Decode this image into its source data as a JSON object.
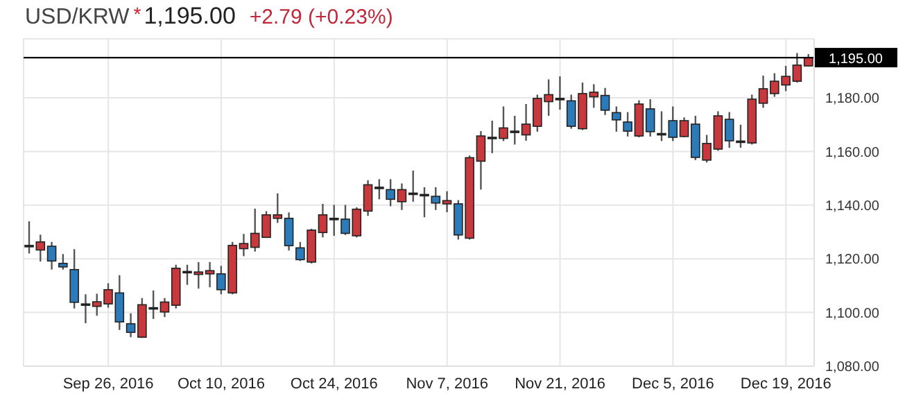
{
  "chart_data": {
    "type": "candlestick",
    "title": "USD/KRW",
    "annotations": [
      "*",
      "1,195.00",
      "+2.79 (+0.23%)"
    ],
    "categories": [
      null,
      null,
      null,
      null,
      null,
      null,
      null,
      "Sep 26, 2016",
      null,
      null,
      null,
      null,
      null,
      null,
      null,
      null,
      null,
      "Oct 10, 2016",
      null,
      null,
      null,
      null,
      null,
      null,
      null,
      null,
      null,
      "Oct 24, 2016",
      null,
      null,
      null,
      null,
      null,
      null,
      null,
      null,
      null,
      "Nov 7, 2016",
      null,
      null,
      null,
      null,
      null,
      null,
      null,
      null,
      null,
      "Nov 21, 2016",
      null,
      null,
      null,
      null,
      null,
      null,
      null,
      null,
      null,
      "Dec 5, 2016",
      null,
      null,
      null,
      null,
      null,
      null,
      null,
      null,
      null,
      "Dec 19, 2016",
      null,
      null
    ],
    "ohlc": [
      [
        1125,
        1134,
        1122,
        1125
      ],
      [
        1123.3,
        1129,
        1119,
        1126.3
      ],
      [
        1124.7,
        1126.3,
        1116,
        1119.2
      ],
      [
        1118.3,
        1121.8,
        1116,
        1117
      ],
      [
        1116,
        1123.6,
        1101.5,
        1103.8
      ],
      [
        1103.2,
        1106.8,
        1096,
        1103.2
      ],
      [
        1102.3,
        1107,
        1098.8,
        1104
      ],
      [
        1103.2,
        1110.9,
        1101.8,
        1108.5
      ],
      [
        1107.3,
        1113.9,
        1093.5,
        1096.5
      ],
      [
        1095.8,
        1099.7,
        1090.8,
        1092.6
      ],
      [
        1090.8,
        1105.4,
        1090.5,
        1102.9
      ],
      [
        1101.8,
        1108.2,
        1097.6,
        1101.8
      ],
      [
        1100.2,
        1105.4,
        1098.3,
        1103.9
      ],
      [
        1102.7,
        1117.8,
        1101.5,
        1116.5
      ],
      [
        1115.3,
        1117.8,
        1110.3,
        1115.3
      ],
      [
        1114.2,
        1118.8,
        1108.9,
        1115.1
      ],
      [
        1114.4,
        1118.8,
        1109.4,
        1115.6
      ],
      [
        1114.4,
        1117.4,
        1106.8,
        1108.5
      ],
      [
        1107.3,
        1126.3,
        1106.8,
        1125
      ],
      [
        1123.8,
        1129.3,
        1121,
        1125.7
      ],
      [
        1124.3,
        1138.7,
        1122.7,
        1129.5
      ],
      [
        1128,
        1137.8,
        1128,
        1136.4
      ],
      [
        1135.1,
        1144.4,
        1133.4,
        1136.4
      ],
      [
        1135.1,
        1137.3,
        1123.1,
        1124.9
      ],
      [
        1124.1,
        1126.3,
        1119.2,
        1119.7
      ],
      [
        1118.8,
        1131.2,
        1118.3,
        1130.7
      ],
      [
        1129.8,
        1140.5,
        1128,
        1136.4
      ],
      [
        1135.1,
        1140.1,
        1128.6,
        1135.1
      ],
      [
        1134.8,
        1140.1,
        1128.9,
        1129.5
      ],
      [
        1128.6,
        1139.2,
        1128,
        1138.5
      ],
      [
        1137.8,
        1149.3,
        1136,
        1147.6
      ],
      [
        1146.7,
        1149.7,
        1142.2,
        1146.7
      ],
      [
        1145.8,
        1149.7,
        1139.6,
        1142.2
      ],
      [
        1141.3,
        1148.1,
        1138.2,
        1145.8
      ],
      [
        1144.5,
        1152.9,
        1141.3,
        1144.5
      ],
      [
        1144,
        1146.7,
        1135.5,
        1144
      ],
      [
        1143.3,
        1146.7,
        1138.2,
        1140.8
      ],
      [
        1140.5,
        1145.2,
        1137.4,
        1141.7
      ],
      [
        1140.5,
        1141.9,
        1127.2,
        1128.9
      ],
      [
        1127.7,
        1158.5,
        1127.2,
        1157.7
      ],
      [
        1156.4,
        1167.6,
        1145.8,
        1165.8
      ],
      [
        1165.3,
        1171.5,
        1159.4,
        1165.3
      ],
      [
        1164.9,
        1176.8,
        1163.9,
        1168.8
      ],
      [
        1167.6,
        1173.3,
        1162.6,
        1167.6
      ],
      [
        1166.2,
        1177.7,
        1164,
        1170.2
      ],
      [
        1169.4,
        1181.2,
        1167.4,
        1179.8
      ],
      [
        1178.6,
        1186.9,
        1173.3,
        1181.2
      ],
      [
        1179.8,
        1188,
        1175.6,
        1179.8
      ],
      [
        1178.9,
        1181.2,
        1168.5,
        1169.4
      ],
      [
        1168.5,
        1185.7,
        1168,
        1181.6
      ],
      [
        1180.4,
        1185.1,
        1176.3,
        1182.1
      ],
      [
        1180.9,
        1183.7,
        1173.6,
        1175.4
      ],
      [
        1174.5,
        1176.8,
        1167.4,
        1171.8
      ],
      [
        1171,
        1174.7,
        1165.6,
        1167.6
      ],
      [
        1165.8,
        1179.1,
        1165.3,
        1177.7
      ],
      [
        1175.9,
        1179.5,
        1165.6,
        1167.4
      ],
      [
        1166.7,
        1175,
        1163.9,
        1166.7
      ],
      [
        1171.5,
        1176.8,
        1163.9,
        1165.3
      ],
      [
        1165.6,
        1172.7,
        1165.3,
        1171.5
      ],
      [
        1170.2,
        1173.3,
        1156.8,
        1157.8
      ],
      [
        1156.8,
        1166.2,
        1155.9,
        1163
      ],
      [
        1160.9,
        1175,
        1160.3,
        1173.3
      ],
      [
        1172,
        1174.7,
        1161.4,
        1164
      ],
      [
        1163.9,
        1170,
        1161.4,
        1163.9
      ],
      [
        1163.2,
        1181.2,
        1162.6,
        1179.5
      ],
      [
        1178,
        1188.3,
        1176.3,
        1183.4
      ],
      [
        1181.6,
        1189.2,
        1180.4,
        1186.2
      ],
      [
        1184.8,
        1191.9,
        1182.5,
        1188
      ],
      [
        1186.2,
        1196.7,
        1185.7,
        1192.2
      ],
      [
        1191.9,
        1196.3,
        1191.9,
        1195
      ]
    ],
    "colors": [
      "#222222",
      "#c8393e",
      "#2b7bba",
      "#2b7bba",
      "#2b7bba",
      "#222222",
      "#c8393e",
      "#c8393e",
      "#2b7bba",
      "#2b7bba",
      "#c8393e",
      "#222222",
      "#c8393e",
      "#c8393e",
      "#222222",
      "#c8393e",
      "#c8393e",
      "#2b7bba",
      "#c8393e",
      "#c8393e",
      "#c8393e",
      "#c8393e",
      "#c8393e",
      "#2b7bba",
      "#2b7bba",
      "#c8393e",
      "#c8393e",
      "#222222",
      "#2b7bba",
      "#c8393e",
      "#c8393e",
      "#222222",
      "#2b7bba",
      "#c8393e",
      "#222222",
      "#222222",
      "#2b7bba",
      "#c8393e",
      "#2b7bba",
      "#c8393e",
      "#c8393e",
      "#222222",
      "#c8393e",
      "#222222",
      "#c8393e",
      "#c8393e",
      "#c8393e",
      "#222222",
      "#2b7bba",
      "#c8393e",
      "#c8393e",
      "#2b7bba",
      "#2b7bba",
      "#2b7bba",
      "#c8393e",
      "#2b7bba",
      "#222222",
      "#2b7bba",
      "#c8393e",
      "#2b7bba",
      "#c8393e",
      "#c8393e",
      "#2b7bba",
      "#222222",
      "#c8393e",
      "#c8393e",
      "#c8393e",
      "#c8393e",
      "#c8393e",
      "#c8393e"
    ],
    "ylim": [
      1080,
      1202
    ],
    "yticks": [
      {
        "value": 1080,
        "label": "1,080.00"
      },
      {
        "value": 1100,
        "label": "1,100.00"
      },
      {
        "value": 1120,
        "label": "1,120.00"
      },
      {
        "value": 1140,
        "label": "1,140.00"
      },
      {
        "value": 1160,
        "label": "1,160.00"
      },
      {
        "value": 1180,
        "label": "1,180.00"
      }
    ],
    "ref_lines": [
      {
        "axis": "y",
        "value": 1195,
        "label": "1,195.00",
        "color": "#000000"
      }
    ],
    "grid": true
  }
}
